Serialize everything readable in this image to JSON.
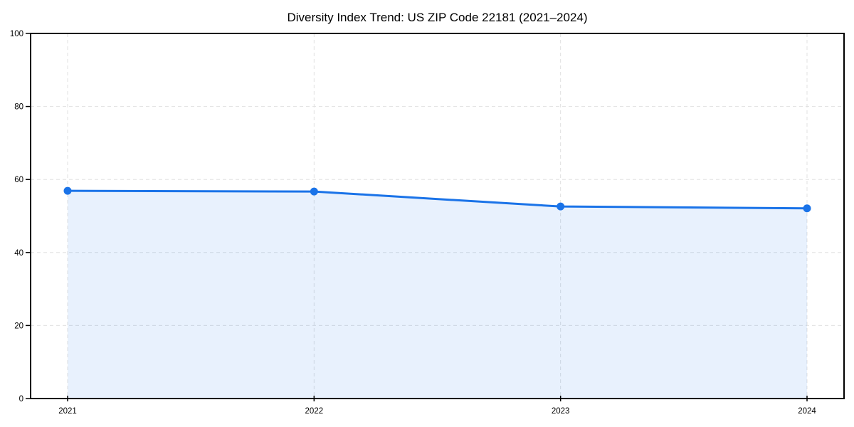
{
  "chart_data": {
    "type": "line",
    "title": "Diversity Index Trend: US ZIP Code 22181 (2021–2024)",
    "x": [
      "2021",
      "2022",
      "2023",
      "2024"
    ],
    "series": [
      {
        "name": "Diversity Index",
        "values": [
          56.9,
          56.7,
          52.6,
          52.1
        ]
      }
    ],
    "xlabel": "",
    "ylabel": "",
    "ylim": [
      0,
      100
    ],
    "yticks": [
      0,
      20,
      40,
      60,
      80,
      100
    ],
    "grid": true,
    "grid_style": "dashed",
    "legend": "none",
    "area_fill": true,
    "marker": "circle",
    "colors": {
      "line": "#1a73e8",
      "area_fill": "rgba(26,115,232,0.10)",
      "grid": "#e0e0e0",
      "axis": "#000000",
      "text": "#000000",
      "background": "#ffffff"
    }
  }
}
